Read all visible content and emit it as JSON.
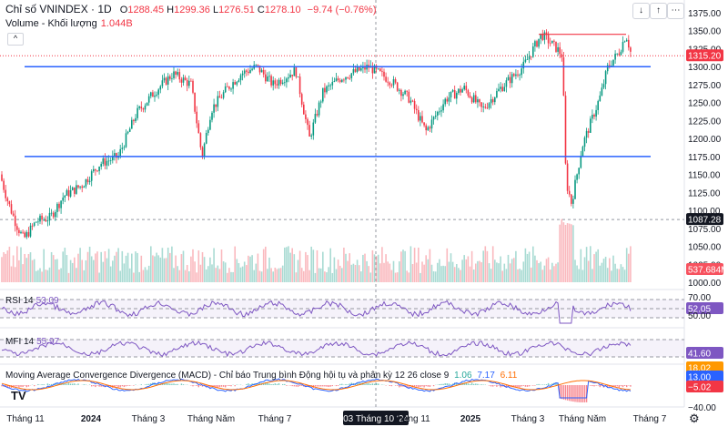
{
  "header": {
    "symbol": "Chỉ số VNINDEX · 1D",
    "open_label": "O",
    "open": "1288.45",
    "high_label": "H",
    "high": "1299.36",
    "low_label": "L",
    "low": "1276.51",
    "close_label": "C",
    "close": "1278.10",
    "change": "−9.74 (−0.76%)"
  },
  "volume_legend": {
    "label": "Volume - Khối lượng",
    "value": "1.044B"
  },
  "rsi_legend": {
    "label": "RSI 14",
    "value": "53.09"
  },
  "mfi_legend": {
    "label": "MFI 14",
    "value": "55.97"
  },
  "macd_legend": {
    "label": "Moving Average Convergence Divergence (MACD) - Chỉ báo Trung bình Động hội tụ và phân kỳ 12 26 close 9",
    "v1": "1.06",
    "v2": "7.17",
    "v3": "6.11"
  },
  "toolbar": {
    "down_icon": "↓",
    "up_icon": "↑",
    "menu_icon": "⋯",
    "collapse_icon": "^",
    "settings_icon": "⚙",
    "logo": "TV"
  },
  "colors": {
    "up": "#089981",
    "down": "#f23645",
    "line": "#2962ff",
    "osc": "#7e57c2",
    "macd": "#2962ff",
    "signal": "#ff6d00"
  },
  "chart_data": {
    "type": "candlestick",
    "ylim": [
      980,
      1380
    ],
    "y_ticks": [
      "1375.00",
      "1350.00",
      "1325.00",
      "1300.00",
      "1275.00",
      "1250.00",
      "1225.00",
      "1200.00",
      "1175.00",
      "1150.00",
      "1125.00",
      "1100.00",
      "1075.00",
      "1050.00",
      "1025.00",
      "1000.00"
    ],
    "x_labels": [
      "Tháng 11",
      "2024",
      "Tháng 3",
      "Tháng Năm",
      "Tháng 7",
      "03 Tháng 10 '24",
      "Tháng 11",
      "2025",
      "Tháng 3",
      "Tháng Năm",
      "Tháng 7"
    ],
    "crosshair_date": "03 Tháng 10 '24",
    "price_label": "1315.20",
    "crosshair_price": "1087.28",
    "volume_label": "537.684M",
    "horizontal_lines": [
      1300,
      1175
    ],
    "resistance_line": 1345,
    "rsi": {
      "value": "52.05",
      "levels": [
        "70.00",
        "50.00"
      ]
    },
    "mfi": {
      "value": "41.60"
    },
    "macd": {
      "values": [
        "18.02",
        "13.00",
        "−5.02",
        "−40.00"
      ]
    },
    "series": [
      {
        "name": "close",
        "points": [
          [
            "Tháng 11",
            1150
          ],
          [
            "2024",
            1130
          ],
          [
            "Tháng 3",
            1240
          ],
          [
            "Tháng Năm",
            1290
          ],
          [
            "Tháng 7",
            1260
          ],
          [
            "03 Tháng 10 '24",
            1285
          ],
          [
            "Tháng 11",
            1240
          ],
          [
            "2025",
            1250
          ],
          [
            "Tháng 3",
            1330
          ],
          [
            "Tháng Năm",
            1230
          ],
          [
            "Tháng 7",
            1315
          ]
        ]
      }
    ]
  }
}
